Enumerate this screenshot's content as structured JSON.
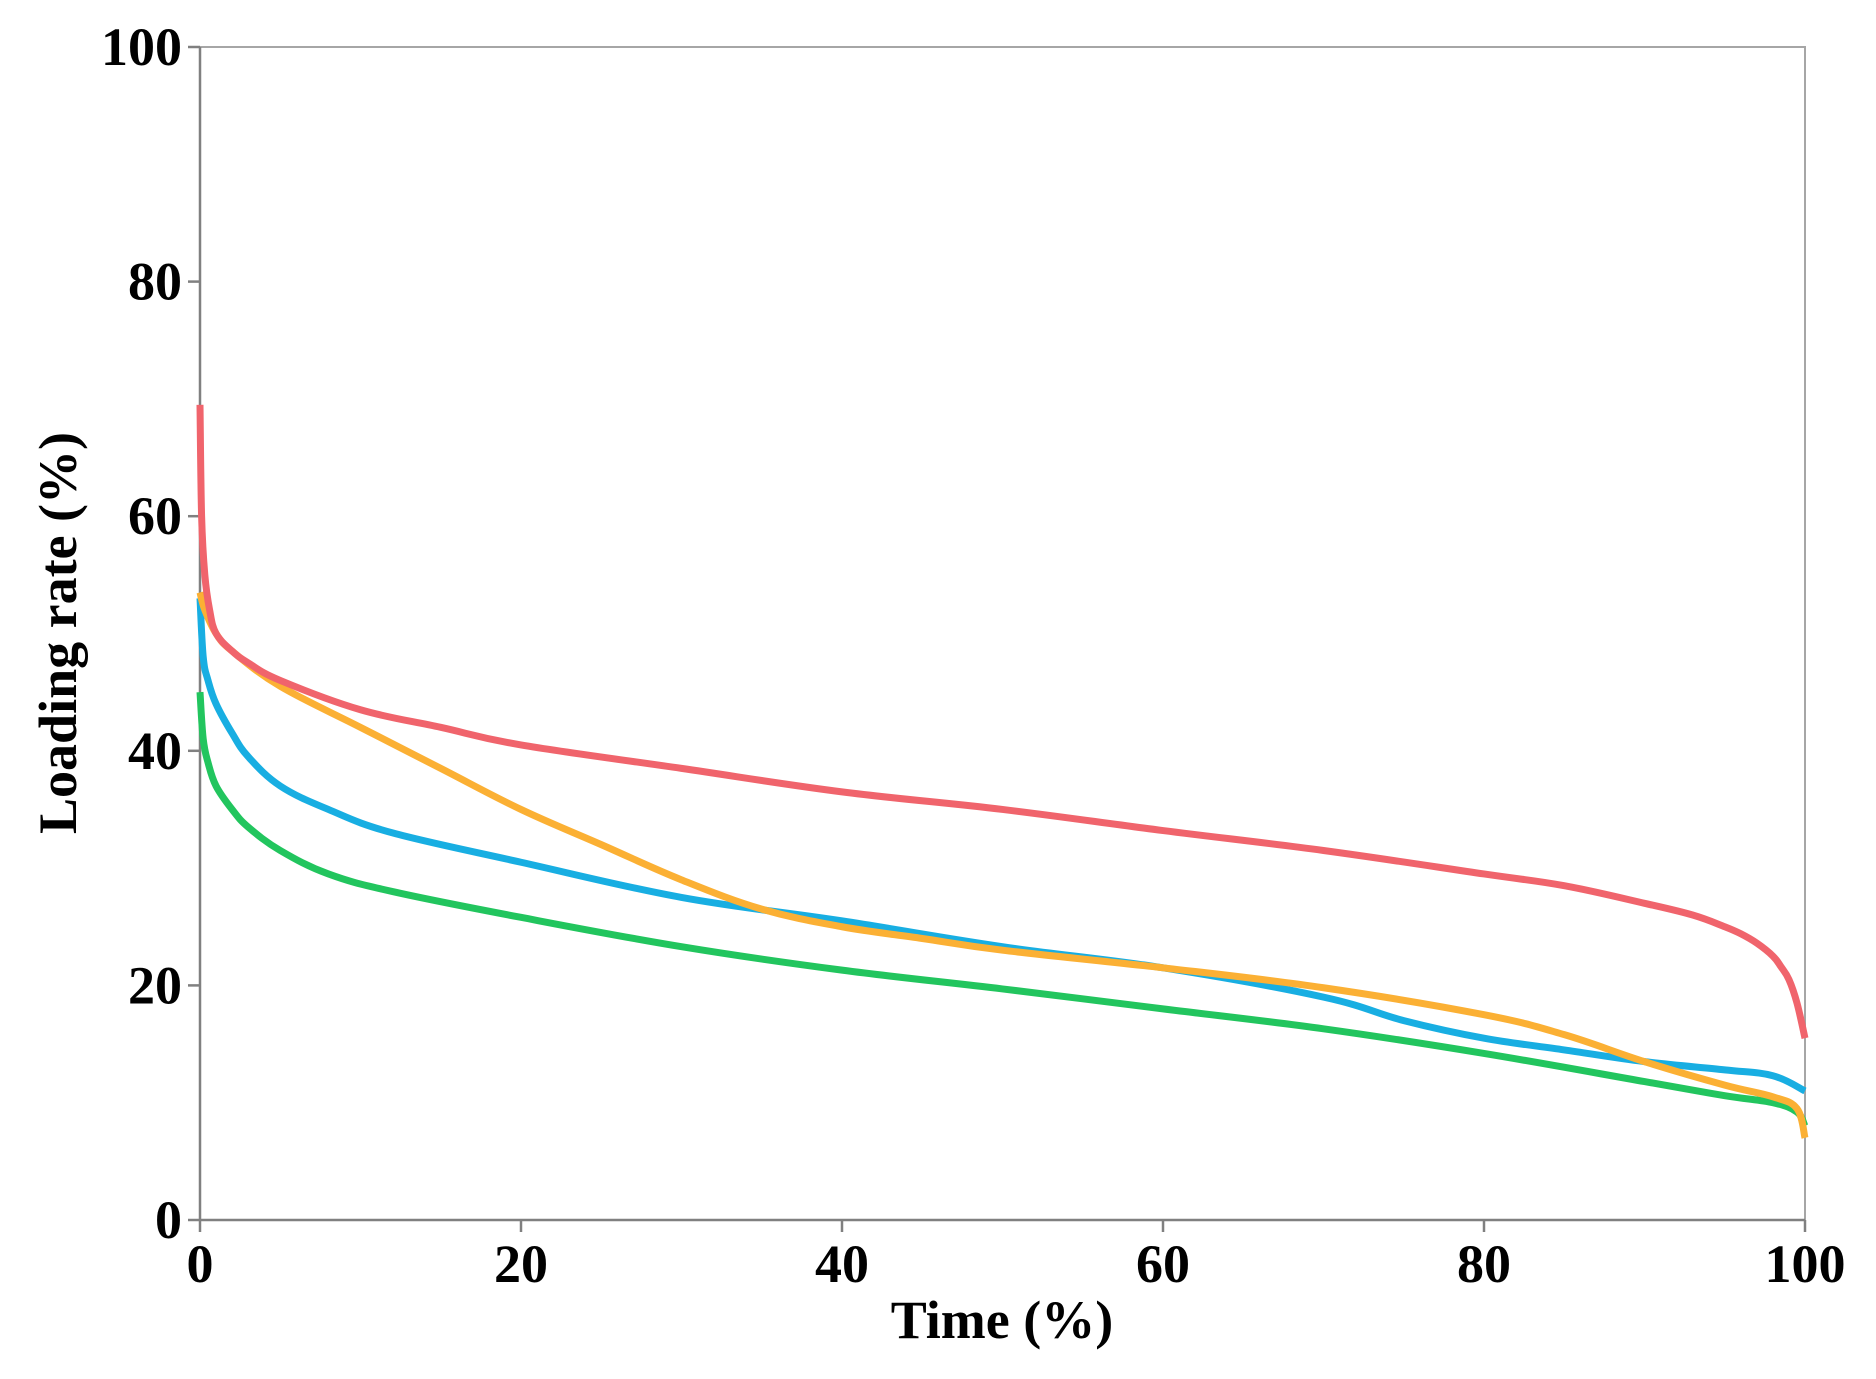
{
  "chart_data": {
    "type": "line",
    "title": "",
    "xlabel": "Time (%)",
    "ylabel": "Loading rate (%)",
    "xlim": [
      0,
      100
    ],
    "ylim": [
      0,
      100
    ],
    "xticks": [
      0,
      20,
      40,
      60,
      80,
      100
    ],
    "yticks": [
      0,
      20,
      40,
      60,
      80,
      100
    ],
    "xtick_labels": [
      "0",
      "20",
      "40",
      "60",
      "80",
      "100"
    ],
    "ytick_labels": [
      "0",
      "20",
      "40",
      "60",
      "80",
      "100"
    ],
    "grid": false,
    "legend": "none",
    "series": [
      {
        "name": "red",
        "color": "#f0646c",
        "x": [
          0,
          0.1,
          0.3,
          0.6,
          1,
          2,
          3,
          5,
          10,
          15,
          20,
          30,
          40,
          50,
          60,
          70,
          80,
          85,
          90,
          93,
          95,
          96,
          97,
          98,
          98.5,
          99,
          99.5,
          100
        ],
        "y": [
          69.5,
          60,
          55,
          52,
          50,
          48.5,
          47.5,
          46,
          43.5,
          42,
          40.5,
          38.5,
          36.5,
          35,
          33.2,
          31.5,
          29.5,
          28.5,
          27,
          26,
          25,
          24.4,
          23.6,
          22.5,
          21.6,
          20.5,
          18.5,
          15.5
        ]
      },
      {
        "name": "blue",
        "color": "#18aee2",
        "x": [
          0,
          0.2,
          0.5,
          1,
          2,
          3,
          5,
          8,
          12,
          20,
          30,
          40,
          50,
          60,
          70,
          75,
          80,
          85,
          90,
          95,
          98,
          100
        ],
        "y": [
          53,
          48,
          46,
          44,
          41.5,
          39.5,
          37,
          35,
          33,
          30.5,
          27.5,
          25.5,
          23.3,
          21.5,
          19,
          17,
          15.5,
          14.5,
          13.5,
          12.8,
          12.3,
          11
        ]
      },
      {
        "name": "orange",
        "color": "#fbb034",
        "x": [
          0,
          0.3,
          1,
          2,
          5,
          10,
          15,
          20,
          25,
          30,
          35,
          40,
          45,
          50,
          60,
          70,
          80,
          85,
          90,
          95,
          98,
          99.5,
          100
        ],
        "y": [
          53.5,
          52,
          50,
          48.5,
          45.5,
          42,
          38.5,
          35,
          32,
          29,
          26.5,
          25,
          24,
          23,
          21.5,
          19.8,
          17.5,
          15.8,
          13.5,
          11.5,
          10.5,
          9.5,
          7
        ]
      },
      {
        "name": "green",
        "color": "#22c55e",
        "x": [
          0,
          0.2,
          0.5,
          1,
          2,
          3,
          5,
          8,
          12,
          20,
          30,
          40,
          50,
          60,
          70,
          80,
          90,
          95,
          98,
          99.5,
          100
        ],
        "y": [
          45,
          41,
          39,
          37,
          35,
          33.5,
          31.5,
          29.5,
          28,
          25.8,
          23.3,
          21.3,
          19.7,
          18,
          16.3,
          14.2,
          11.8,
          10.6,
          10,
          9.2,
          8
        ]
      }
    ]
  }
}
